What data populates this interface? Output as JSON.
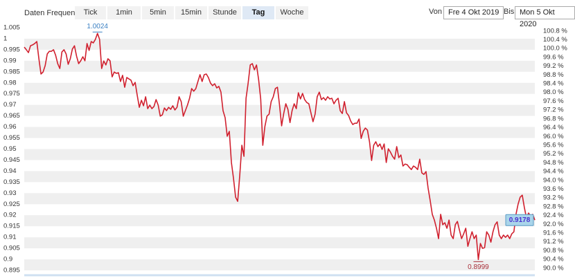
{
  "toolbar": {
    "label": "Daten Frequenz",
    "buttons": [
      {
        "label": "Tick",
        "selected": false
      },
      {
        "label": "1min",
        "selected": false
      },
      {
        "label": "5min",
        "selected": false
      },
      {
        "label": "15min",
        "selected": false
      },
      {
        "label": "Stunde",
        "selected": false
      },
      {
        "label": "Tag",
        "selected": true
      },
      {
        "label": "Woche",
        "selected": false
      }
    ]
  },
  "date_range": {
    "from_label": "Von",
    "from": "Fre 4 Okt 2019",
    "to_label": "Bis",
    "to": "Mon 5 Okt 2020"
  },
  "chart_data": {
    "type": "line",
    "color": "#d0202e",
    "grid": true,
    "values": [
      0.9962,
      0.995,
      0.9937,
      0.9968,
      0.9972,
      0.9978,
      0.9987,
      0.9909,
      0.984,
      0.9849,
      0.9878,
      0.9931,
      0.9943,
      0.9943,
      0.995,
      0.9925,
      0.9887,
      0.9865,
      0.994,
      0.995,
      0.9931,
      0.9884,
      0.9909,
      0.9953,
      0.9968,
      0.9921,
      0.9887,
      0.99,
      0.9918,
      0.99,
      0.9978,
      0.9947,
      0.9987,
      0.9981,
      0.9997,
      1.0024,
      0.9997,
      0.9865,
      0.9899,
      0.9881,
      0.9909,
      0.99,
      0.9827,
      0.9849,
      0.9843,
      0.9846,
      0.9806,
      0.9834,
      0.978,
      0.9824,
      0.9818,
      0.9812,
      0.9787,
      0.9802,
      0.9743,
      0.9689,
      0.9721,
      0.9696,
      0.9737,
      0.9683,
      0.9699,
      0.9683,
      0.9693,
      0.9724,
      0.9699,
      0.9649,
      0.9655,
      0.9686,
      0.9674,
      0.9689,
      0.968,
      0.9696,
      0.9677,
      0.9689,
      0.9737,
      0.9715,
      0.9649,
      0.9674,
      0.9699,
      0.973,
      0.9774,
      0.9762,
      0.9774,
      0.9806,
      0.9837,
      0.9806,
      0.9837,
      0.984,
      0.9824,
      0.9799,
      0.9787,
      0.9796,
      0.9777,
      0.9784,
      0.9758,
      0.9674,
      0.9642,
      0.9558,
      0.958,
      0.9439,
      0.9367,
      0.9282,
      0.9263,
      0.9382,
      0.9517,
      0.9467,
      0.973,
      0.9799,
      0.9881,
      0.9887,
      0.9859,
      0.9881,
      0.9815,
      0.9727,
      0.9517,
      0.9602,
      0.9649,
      0.9658,
      0.9715,
      0.9737,
      0.9774,
      0.978,
      0.9699,
      0.9605,
      0.9661,
      0.9705,
      0.968,
      0.962,
      0.9674,
      0.9705,
      0.9683,
      0.9755,
      0.9727,
      0.9752,
      0.9724,
      0.9711,
      0.9705,
      0.9664,
      0.9624,
      0.9658,
      0.9737,
      0.9758,
      0.9724,
      0.9733,
      0.9721,
      0.9737,
      0.9727,
      0.973,
      0.9705,
      0.9721,
      0.973,
      0.9674,
      0.9661,
      0.9715,
      0.9664,
      0.9652,
      0.9627,
      0.9611,
      0.9617,
      0.9617,
      0.9636,
      0.9548,
      0.958,
      0.9595,
      0.9586,
      0.9533,
      0.9448,
      0.9517,
      0.9533,
      0.9511,
      0.9523,
      0.9498,
      0.9523,
      0.9439,
      0.9501,
      0.9486,
      0.9467,
      0.9454,
      0.9511,
      0.9461,
      0.9473,
      0.9423,
      0.9432,
      0.9429,
      0.9417,
      0.9407,
      0.9423,
      0.9417,
      0.9407,
      0.9454,
      0.9392,
      0.9385,
      0.9398,
      0.9323,
      0.9266,
      0.9204,
      0.9178,
      0.9141,
      0.9094,
      0.9204,
      0.9157,
      0.9166,
      0.9141,
      0.9178,
      0.911,
      0.9094,
      0.9157,
      0.9172,
      0.9132,
      0.9094,
      0.9116,
      0.9141,
      0.9059,
      0.9094,
      0.9125,
      0.9094,
      0.911,
      0.8999,
      0.9072,
      0.905,
      0.9053,
      0.9125,
      0.911,
      0.9078,
      0.9125,
      0.9157,
      0.917,
      0.911,
      0.9094,
      0.911,
      0.91,
      0.911,
      0.9094,
      0.9116,
      0.9125,
      0.9204,
      0.925,
      0.9282,
      0.9291,
      0.9235,
      0.9188,
      0.921,
      0.9197,
      0.9204,
      0.9178
    ],
    "ylim": [
      0.895,
      1.005
    ],
    "yticks": [
      1.005,
      1,
      0.995,
      0.99,
      0.985,
      0.98,
      0.975,
      0.97,
      0.965,
      0.96,
      0.955,
      0.95,
      0.945,
      0.94,
      0.935,
      0.93,
      0.925,
      0.92,
      0.915,
      0.91,
      0.905,
      0.9,
      0.895
    ],
    "y2lim": [
      89.9,
      100.95
    ],
    "y2ticks": [
      {
        "value": 100.8,
        "label": "100.8 %"
      },
      {
        "value": 100.4,
        "label": "100.4 %"
      },
      {
        "value": 100.0,
        "label": "100.0 %"
      },
      {
        "value": 99.6,
        "label": "99.6 %"
      },
      {
        "value": 99.2,
        "label": "99.2 %"
      },
      {
        "value": 98.8,
        "label": "98.8 %"
      },
      {
        "value": 98.4,
        "label": "98.4 %"
      },
      {
        "value": 98.0,
        "label": "98.0 %"
      },
      {
        "value": 97.6,
        "label": "97.6 %"
      },
      {
        "value": 97.2,
        "label": "97.2 %"
      },
      {
        "value": 96.8,
        "label": "96.8 %"
      },
      {
        "value": 96.4,
        "label": "96.4 %"
      },
      {
        "value": 96.0,
        "label": "96.0 %"
      },
      {
        "value": 95.6,
        "label": "95.6 %"
      },
      {
        "value": 95.2,
        "label": "95.2 %"
      },
      {
        "value": 94.8,
        "label": "94.8 %"
      },
      {
        "value": 94.4,
        "label": "94.4 %"
      },
      {
        "value": 94.0,
        "label": "94.0 %"
      },
      {
        "value": 93.6,
        "label": "93.6 %"
      },
      {
        "value": 93.2,
        "label": "93.2 %"
      },
      {
        "value": 92.8,
        "label": "92.8 %"
      },
      {
        "value": 92.4,
        "label": "92.4 %"
      },
      {
        "value": 92.0,
        "label": "92.0 %"
      },
      {
        "value": 91.6,
        "label": "91.6 %"
      },
      {
        "value": 91.2,
        "label": "91.2 %"
      },
      {
        "value": 90.8,
        "label": "90.8 %"
      },
      {
        "value": 90.4,
        "label": "90.4 %"
      },
      {
        "value": 90.0,
        "label": "90.0 %"
      }
    ]
  }
}
